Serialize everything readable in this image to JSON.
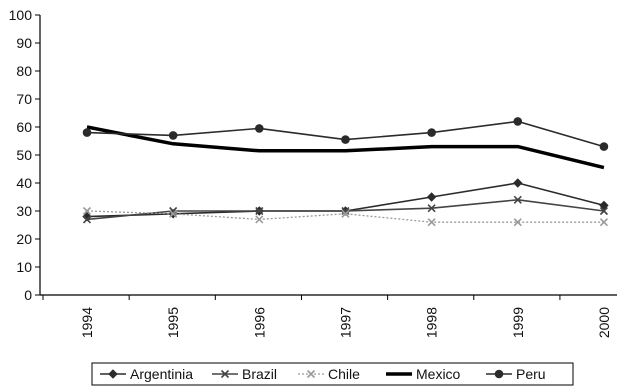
{
  "chart_data": {
    "type": "line",
    "title": "",
    "xlabel": "",
    "ylabel": "",
    "categories": [
      "1994",
      "1995",
      "1996",
      "1997",
      "1998",
      "1999",
      "2000"
    ],
    "ylim": [
      0,
      100
    ],
    "yticks": [
      0,
      10,
      20,
      30,
      40,
      50,
      60,
      70,
      80,
      90,
      100
    ],
    "grid": false,
    "legend_position": "bottom",
    "series": [
      {
        "name": "Argentinia",
        "values": [
          28,
          29,
          30,
          30,
          35,
          40,
          32
        ],
        "color": "#2b2b2b",
        "marker": "diamond",
        "style": "solid"
      },
      {
        "name": "Brazil",
        "values": [
          27,
          30,
          30,
          30,
          31,
          34,
          30
        ],
        "color": "#444444",
        "marker": "x",
        "style": "solid"
      },
      {
        "name": "Chile",
        "values": [
          30,
          29,
          27,
          29,
          26,
          26,
          26
        ],
        "color": "#9a9a9a",
        "marker": "x",
        "style": "dotted"
      },
      {
        "name": "Mexico",
        "values": [
          60,
          54,
          51.5,
          51.5,
          53,
          53,
          45.5
        ],
        "color": "#000000",
        "marker": "none",
        "style": "thick"
      },
      {
        "name": "Peru",
        "values": [
          58,
          57,
          59.5,
          55.5,
          58,
          62,
          53
        ],
        "color": "#2b2b2b",
        "marker": "circle",
        "style": "solid"
      }
    ]
  }
}
